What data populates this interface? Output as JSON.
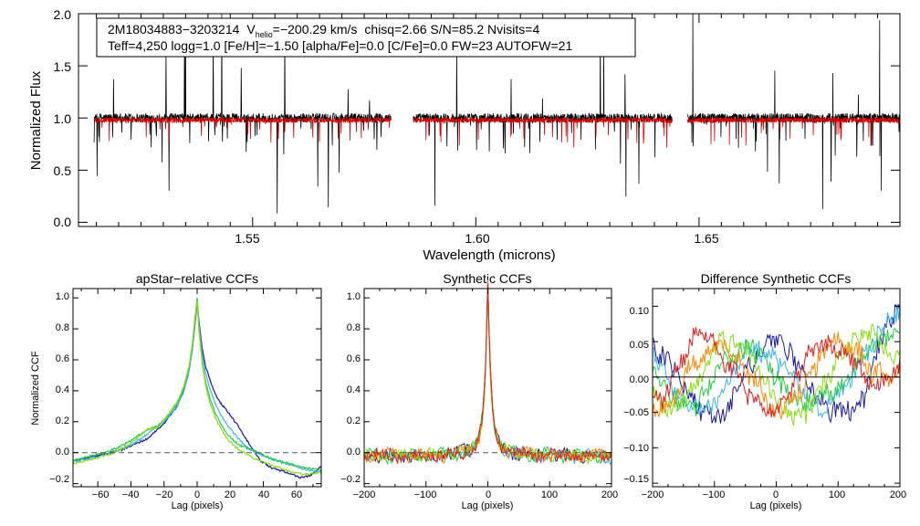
{
  "colors": {
    "axis": "#000000",
    "black_series": "#000000",
    "red_series": "#e00000",
    "dashed": "#555555",
    "ccf_series": [
      "#1a1aa0",
      "#3ab4f2",
      "#22cc44",
      "#88dd11",
      "#ff8800",
      "#e02020"
    ]
  },
  "chart_data": [
    {
      "type": "line",
      "name": "spectrum",
      "xlabel": "Wavelength (microns)",
      "ylabel": "Normalized Flux",
      "xlim": [
        1.511,
        1.695
      ],
      "ylim": [
        -0.04,
        2.0
      ],
      "xticks": [
        1.55,
        1.6,
        1.65
      ],
      "xtick_labels": [
        "1.55",
        "1.60",
        "1.65"
      ],
      "yticks": [
        0.0,
        0.5,
        1.0,
        1.5,
        2.0
      ],
      "ytick_labels": [
        "0.0",
        "0.5",
        "1.0",
        "1.5",
        "2.0"
      ],
      "chip_ranges": [
        [
          1.5145,
          1.581
        ],
        [
          1.586,
          1.644
        ],
        [
          1.6474,
          1.695
        ]
      ],
      "series": [
        {
          "name": "observed",
          "color": "#000000",
          "continuum": 1.0
        },
        {
          "name": "model",
          "color": "#e00000",
          "continuum": 0.98
        }
      ],
      "info_box": {
        "line1_id": "2M18034883−3203214",
        "line1_vhelio_label": "V",
        "line1_vhelio_sub": "helio",
        "line1_vhelio_value": "=−200.29 km/s",
        "line1_rest": "chisq=2.66  S/N=85.2  Nvisits=4",
        "line2": "Teff=4,250 logg=1.0 [Fe/H]=−1.50 [alpha/Fe]=0.0 [C/Fe]=0.0 FW=23 AUTOFW=21"
      }
    },
    {
      "type": "line",
      "name": "apstar-relative-ccfs",
      "title": "apStar−relative CCFs",
      "xlabel": "Lag (pixels)",
      "ylabel": "Normalized CCF",
      "xlim": [
        -75,
        75
      ],
      "ylim": [
        -0.22,
        1.06
      ],
      "xticks": [
        -60,
        -40,
        -20,
        0,
        20,
        40,
        60
      ],
      "xtick_labels": [
        "−60",
        "−40",
        "−20",
        "0",
        "20",
        "40",
        "60"
      ],
      "yticks": [
        -0.2,
        0.0,
        0.2,
        0.4,
        0.6,
        0.8,
        1.0
      ],
      "ytick_labels": [
        "−0.2",
        "0.0",
        "0.2",
        "0.4",
        "0.6",
        "0.8",
        "1.0"
      ],
      "series": [
        {
          "name": "visit-1",
          "color": "#1a1aa0",
          "left_pts": [
            [
              -75,
              -0.05
            ],
            [
              -60,
              -0.02
            ],
            [
              -45,
              0.02
            ],
            [
              -30,
              0.09
            ],
            [
              -20,
              0.19
            ],
            [
              -12,
              0.3
            ],
            [
              -8,
              0.4
            ],
            [
              -5,
              0.52
            ],
            [
              -3,
              0.66
            ],
            [
              -1,
              0.86
            ],
            [
              0,
              0.97
            ]
          ],
          "right_pts": [
            [
              0,
              0.97
            ],
            [
              1,
              0.86
            ],
            [
              3,
              0.68
            ],
            [
              5,
              0.56
            ],
            [
              8,
              0.46
            ],
            [
              12,
              0.35
            ],
            [
              18,
              0.27
            ],
            [
              25,
              0.17
            ],
            [
              30,
              0.08
            ],
            [
              38,
              -0.05
            ],
            [
              45,
              -0.1
            ],
            [
              55,
              -0.13
            ],
            [
              62,
              -0.16
            ],
            [
              68,
              -0.15
            ],
            [
              75,
              -0.09
            ]
          ]
        },
        {
          "name": "visit-2",
          "color": "#3ab4f2",
          "left_pts": [
            [
              -75,
              -0.06
            ],
            [
              -62,
              -0.03
            ],
            [
              -50,
              0.0
            ],
            [
              -40,
              0.05
            ],
            [
              -30,
              0.12
            ],
            [
              -20,
              0.2
            ],
            [
              -12,
              0.3
            ],
            [
              -8,
              0.4
            ],
            [
              -5,
              0.52
            ],
            [
              -3,
              0.66
            ],
            [
              -1,
              0.88
            ],
            [
              0,
              0.99
            ]
          ],
          "right_pts": [
            [
              0,
              0.99
            ],
            [
              1,
              0.84
            ],
            [
              3,
              0.64
            ],
            [
              5,
              0.52
            ],
            [
              8,
              0.4
            ],
            [
              12,
              0.29
            ],
            [
              18,
              0.18
            ],
            [
              25,
              0.09
            ],
            [
              32,
              0.02
            ],
            [
              40,
              -0.02
            ],
            [
              50,
              -0.06
            ],
            [
              60,
              -0.09
            ],
            [
              68,
              -0.12
            ],
            [
              75,
              -0.12
            ]
          ]
        },
        {
          "name": "visit-3",
          "color": "#22cc44",
          "left_pts": [
            [
              -75,
              -0.05
            ],
            [
              -60,
              -0.01
            ],
            [
              -48,
              0.03
            ],
            [
              -38,
              0.09
            ],
            [
              -30,
              0.15
            ],
            [
              -24,
              0.17
            ],
            [
              -18,
              0.23
            ],
            [
              -12,
              0.32
            ],
            [
              -8,
              0.42
            ],
            [
              -5,
              0.54
            ],
            [
              -3,
              0.68
            ],
            [
              -1,
              0.9
            ],
            [
              0,
              1.0
            ]
          ],
          "right_pts": [
            [
              0,
              1.0
            ],
            [
              1,
              0.82
            ],
            [
              3,
              0.6
            ],
            [
              5,
              0.46
            ],
            [
              8,
              0.34
            ],
            [
              12,
              0.23
            ],
            [
              18,
              0.12
            ],
            [
              25,
              0.05
            ],
            [
              35,
              0.01
            ],
            [
              45,
              -0.04
            ],
            [
              55,
              -0.07
            ],
            [
              65,
              -0.1
            ],
            [
              75,
              -0.11
            ]
          ]
        },
        {
          "name": "visit-4",
          "color": "#88dd11",
          "left_pts": [
            [
              -75,
              -0.07
            ],
            [
              -62,
              -0.04
            ],
            [
              -50,
              0.0
            ],
            [
              -40,
              0.06
            ],
            [
              -30,
              0.15
            ],
            [
              -24,
              0.16
            ],
            [
              -18,
              0.24
            ],
            [
              -12,
              0.33
            ],
            [
              -8,
              0.43
            ],
            [
              -5,
              0.55
            ],
            [
              -3,
              0.7
            ],
            [
              -1,
              0.9
            ],
            [
              0,
              0.98
            ]
          ],
          "right_pts": [
            [
              0,
              0.98
            ],
            [
              1,
              0.8
            ],
            [
              3,
              0.58
            ],
            [
              5,
              0.44
            ],
            [
              8,
              0.31
            ],
            [
              12,
              0.2
            ],
            [
              18,
              0.09
            ],
            [
              25,
              0.02
            ],
            [
              35,
              -0.04
            ],
            [
              45,
              -0.08
            ],
            [
              55,
              -0.12
            ],
            [
              65,
              -0.14
            ],
            [
              75,
              -0.13
            ]
          ]
        }
      ]
    },
    {
      "type": "line",
      "name": "synthetic-ccfs",
      "title": "Synthetic CCFs",
      "xlabel": "Lag (pixels)",
      "ylabel": "",
      "xlim": [
        -200,
        200
      ],
      "ylim": [
        -0.22,
        1.06
      ],
      "xticks": [
        -200,
        -100,
        0,
        100,
        200
      ],
      "xtick_labels": [
        "−200",
        "−100",
        "0",
        "100",
        "200"
      ],
      "yticks": [
        -0.2,
        0.0,
        0.2,
        0.4,
        0.6,
        0.8,
        1.0
      ],
      "ytick_labels": [
        "−0.2",
        "0.0",
        "0.2",
        "0.4",
        "0.6",
        "0.8",
        "1.0"
      ],
      "zero_line_style": "dashed",
      "peak": 1.0,
      "noise_amplitude": 0.05,
      "series_count": 6
    },
    {
      "type": "line",
      "name": "difference-synthetic-ccfs",
      "title": "Difference Synthetic CCFs",
      "xlabel": "Lag (pixels)",
      "ylabel": "",
      "xlim": [
        -200,
        200
      ],
      "ylim": [
        -0.155,
        0.125
      ],
      "xticks": [
        -200,
        -100,
        0,
        100,
        200
      ],
      "xtick_labels": [
        "−200",
        "−100",
        "0",
        "100",
        "200"
      ],
      "yticks": [
        -0.15,
        -0.1,
        -0.05,
        0.0,
        0.05,
        0.1
      ],
      "ytick_labels": [
        "−0.15",
        "−0.10",
        "−0.05",
        "0.00",
        "0.05",
        "0.10"
      ],
      "zero_line_style": "solid",
      "series_count": 6,
      "amplitude": 0.06
    }
  ]
}
